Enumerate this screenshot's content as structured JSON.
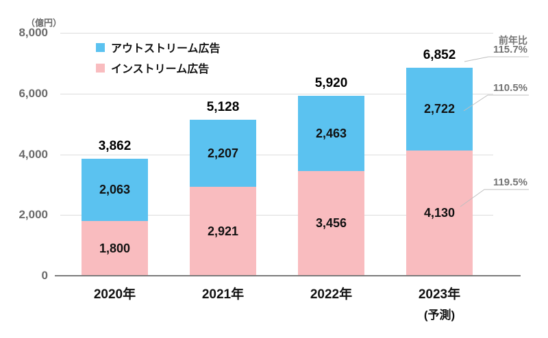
{
  "chart_data": {
    "type": "bar",
    "stacked": true,
    "unit_label": "（億円）",
    "categories": [
      "2020年",
      "2021年",
      "2022年",
      "2023年"
    ],
    "category_sublabels": [
      "",
      "",
      "",
      "(予測)"
    ],
    "series": [
      {
        "name": "インストリーム広告",
        "color": "#F9BCBF",
        "values": [
          1800,
          2921,
          3456,
          4130
        ],
        "labels": [
          "1,800",
          "2,921",
          "3,456",
          "4,130"
        ]
      },
      {
        "name": "アウトストリーム広告",
        "color": "#5BC2F0",
        "values": [
          2063,
          2207,
          2463,
          2722
        ],
        "labels": [
          "2,063",
          "2,207",
          "2,463",
          "2,722"
        ]
      }
    ],
    "totals": {
      "values": [
        3862,
        5128,
        5920,
        6852
      ],
      "labels": [
        "3,862",
        "5,128",
        "5,920",
        "6,852"
      ]
    },
    "y_axis": {
      "min": 0,
      "max": 8000,
      "ticks": [
        0,
        2000,
        4000,
        6000,
        8000
      ],
      "tick_labels": [
        "0",
        "2,000",
        "4,000",
        "6,000",
        "8,000"
      ]
    },
    "grid": true,
    "legend": {
      "position": "top-left-inside",
      "items": [
        {
          "label": "アウトストリーム広告",
          "color": "#5BC2F0"
        },
        {
          "label": "インストリーム広告",
          "color": "#F9BCBF"
        }
      ]
    },
    "annotations": {
      "header": "前年比",
      "items": [
        {
          "label": "115.7%",
          "target": "2023-total-6852"
        },
        {
          "label": "110.5%",
          "target": "2023-outstream-2722"
        },
        {
          "label": "119.5%",
          "target": "2023-instream-4130"
        }
      ]
    }
  },
  "colors": {
    "outstream_blue": "#5BC2F0",
    "instream_pink": "#F9BCBF",
    "gridline": "#DCDCDC",
    "axis": "#7A7A7A",
    "annotation_text": "#737373",
    "leader_line": "#BFBFBF"
  }
}
